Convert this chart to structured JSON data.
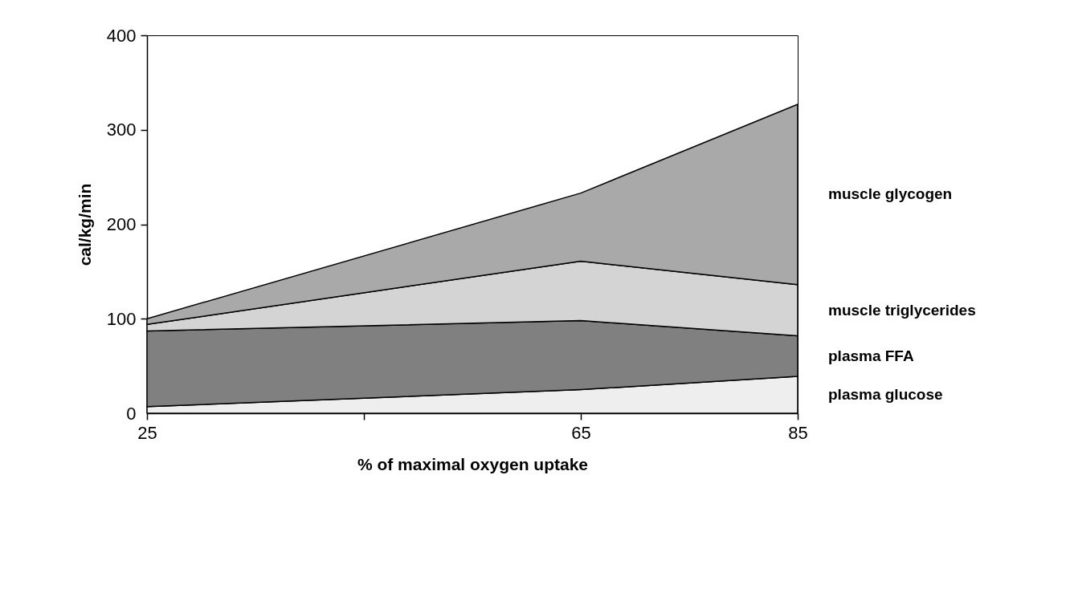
{
  "chart_data": {
    "type": "area",
    "stacked": true,
    "xlabel": "% of maximal oxygen uptake",
    "ylabel": "cal/kg/min",
    "x": [
      25,
      65,
      85
    ],
    "xlim": [
      25,
      85
    ],
    "xticks": [
      25,
      {
        "value": 45,
        "label": null
      },
      65,
      85
    ],
    "ylim": [
      0,
      400
    ],
    "yticks": [
      0,
      100,
      200,
      300,
      400
    ],
    "grid": false,
    "legend": false,
    "series": [
      {
        "name": "plasma glucose",
        "color": "#eeeeee",
        "values": [
          7,
          25,
          39
        ]
      },
      {
        "name": "plasma FFA",
        "color": "#808080",
        "values": [
          80,
          73,
          43
        ]
      },
      {
        "name": "muscle triglycerides",
        "color": "#d4d4d4",
        "values": [
          7,
          63,
          54
        ]
      },
      {
        "name": "muscle glycogen",
        "color": "#a9a9a9",
        "values": [
          6,
          72,
          191
        ]
      }
    ]
  }
}
